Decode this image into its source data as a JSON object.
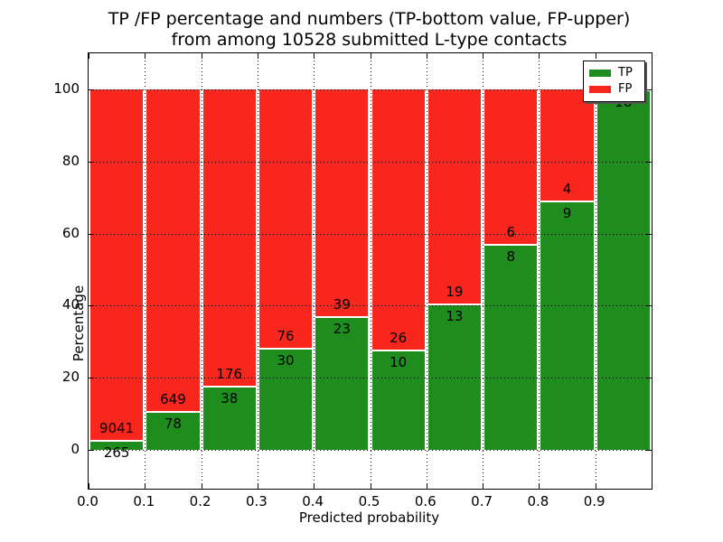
{
  "figure": {
    "title_line1": "TP /FP percentage and numbers (TP-bottom value, FP-upper)",
    "title_line2": "from among 10528 submitted L-type contacts",
    "background_color": "#ffffff"
  },
  "axes": {
    "xlabel": "Predicted probability",
    "ylabel": "Percentage",
    "xticklabels": [
      "0.0",
      "0.1",
      "0.2",
      "0.3",
      "0.4",
      "0.5",
      "0.6",
      "0.7",
      "0.8",
      "0.9"
    ],
    "yticklabels": [
      "0",
      "20",
      "40",
      "60",
      "80",
      "100"
    ],
    "yticks": [
      0,
      20,
      40,
      60,
      80,
      100
    ],
    "xlim": [
      0.0,
      1.0
    ],
    "ylim": [
      -11,
      110
    ],
    "frame_color": "#000000",
    "grid_color": "#000000"
  },
  "legend": {
    "position": "upper right",
    "items": [
      {
        "label": "TP",
        "color": "#1e8d1e"
      },
      {
        "label": "FP",
        "color": "#f9261d"
      }
    ]
  },
  "chart_data": {
    "type": "bar",
    "stacking": "percentage",
    "title": "TP /FP percentage and numbers (TP-bottom value, FP-upper) from among 10528 submitted L-type contacts",
    "xlabel": "Predicted probability",
    "ylabel": "Percentage",
    "total_submitted": 10528,
    "categories": [
      "0.0-0.1",
      "0.1-0.2",
      "0.2-0.3",
      "0.3-0.4",
      "0.4-0.5",
      "0.5-0.6",
      "0.6-0.7",
      "0.7-0.8",
      "0.8-0.9",
      "0.9-1.0"
    ],
    "x_bin_edges": [
      0.0,
      0.1,
      0.2,
      0.3,
      0.4,
      0.5,
      0.6,
      0.7,
      0.8,
      0.9,
      1.0
    ],
    "series": [
      {
        "name": "TP",
        "color": "#1e8d1e",
        "counts": [
          265,
          78,
          38,
          30,
          23,
          10,
          13,
          8,
          9,
          18
        ],
        "percent": [
          2.85,
          10.73,
          17.76,
          28.3,
          37.1,
          27.78,
          40.63,
          57.14,
          69.23,
          100.0
        ]
      },
      {
        "name": "FP",
        "color": "#f9261d",
        "counts": [
          9041,
          649,
          176,
          76,
          39,
          26,
          19,
          6,
          4,
          0
        ],
        "percent": [
          97.15,
          89.27,
          82.24,
          71.7,
          62.9,
          72.22,
          59.37,
          42.86,
          30.77,
          0.0
        ]
      }
    ],
    "xticks": [
      0.0,
      0.1,
      0.2,
      0.3,
      0.4,
      0.5,
      0.6,
      0.7,
      0.8,
      0.9
    ],
    "yticks": [
      0,
      20,
      40,
      60,
      80,
      100
    ],
    "xlim": [
      0.0,
      1.0
    ],
    "ylim": [
      -11,
      110
    ],
    "grid": true,
    "grid_style": "dotted",
    "bar_edge_color": "#ffffff",
    "legend_position": "upper right"
  }
}
